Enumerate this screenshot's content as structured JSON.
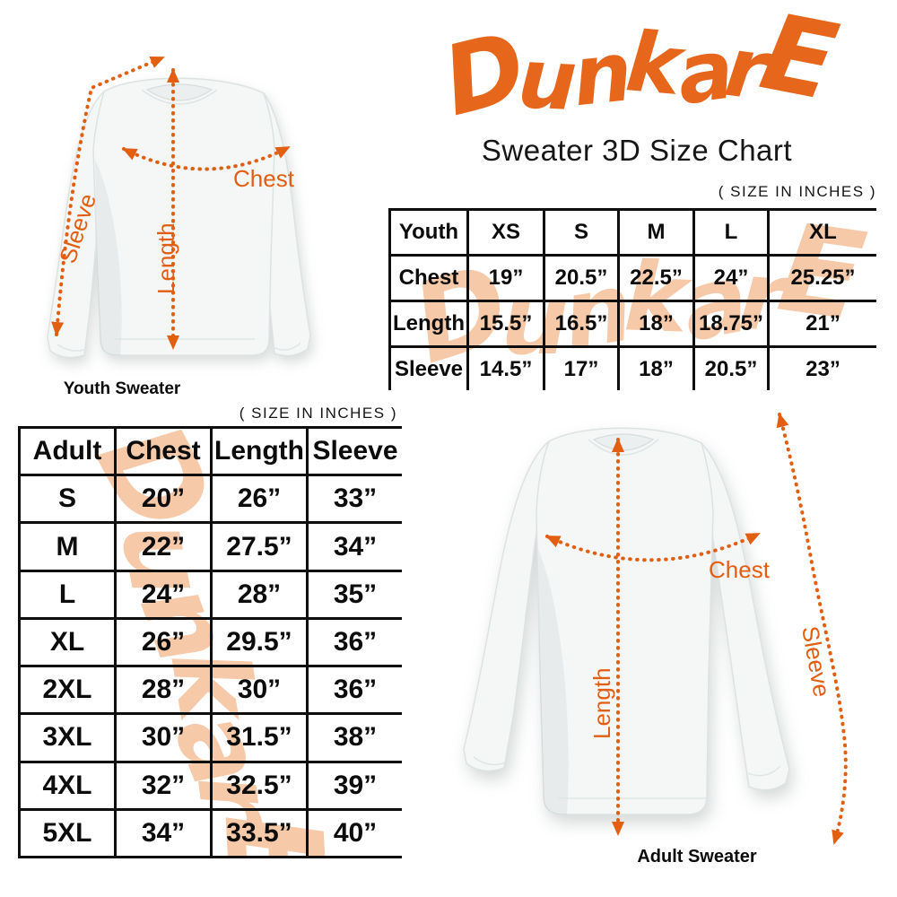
{
  "brand": {
    "logo_text": "DunkarE",
    "title": "Sweater 3D Size Chart",
    "accent_orange": "#E6671C",
    "arrow_orange": "#E25F12",
    "watermark_peach": "#F6C9A9"
  },
  "size_note": "( SIZE IN INCHES )",
  "youth_diagram": {
    "caption": "Youth Sweater",
    "labels": {
      "chest": "Chest",
      "length": "Length",
      "sleeve": "Sleeve"
    }
  },
  "adult_diagram": {
    "caption": "Adult Sweater",
    "labels": {
      "chest": "Chest",
      "length": "Length",
      "sleeve": "Sleeve"
    }
  },
  "youth_table": {
    "header": [
      "Youth",
      "XS",
      "S",
      "M",
      "L",
      "XL"
    ],
    "rows": [
      [
        "Chest",
        "19”",
        "20.5”",
        "22.5”",
        "24”",
        "25.25”"
      ],
      [
        "Length",
        "15.5”",
        "16.5”",
        "18”",
        "18.75”",
        "21”"
      ],
      [
        "Sleeve",
        "14.5”",
        "17”",
        "18”",
        "20.5”",
        "23”"
      ]
    ]
  },
  "adult_table": {
    "header": [
      "Adult",
      "Chest",
      "Length",
      "Sleeve"
    ],
    "rows": [
      [
        "S",
        "20”",
        "26”",
        "33”"
      ],
      [
        "M",
        "22”",
        "27.5”",
        "34”"
      ],
      [
        "L",
        "24”",
        "28”",
        "35”"
      ],
      [
        "XL",
        "26”",
        "29.5”",
        "36”"
      ],
      [
        "2XL",
        "28”",
        "30”",
        "36”"
      ],
      [
        "3XL",
        "30”",
        "31.5”",
        "38”"
      ],
      [
        "4XL",
        "32”",
        "32.5”",
        "39”"
      ],
      [
        "5XL",
        "34”",
        "33.5”",
        "40”"
      ]
    ]
  },
  "chart_data": [
    {
      "type": "table",
      "title": "Youth Sweater sizes (inches)",
      "columns": [
        "Youth",
        "XS",
        "S",
        "M",
        "L",
        "XL"
      ],
      "rows": {
        "Chest": [
          19,
          20.5,
          22.5,
          24,
          25.25
        ],
        "Length": [
          15.5,
          16.5,
          18,
          18.75,
          21
        ],
        "Sleeve": [
          14.5,
          17,
          18,
          20.5,
          23
        ]
      }
    },
    {
      "type": "table",
      "title": "Adult Sweater sizes (inches)",
      "columns": [
        "Adult",
        "Chest",
        "Length",
        "Sleeve"
      ],
      "rows": {
        "S": [
          20,
          26,
          33
        ],
        "M": [
          22,
          27.5,
          34
        ],
        "L": [
          24,
          28,
          35
        ],
        "XL": [
          26,
          29.5,
          36
        ],
        "2XL": [
          28,
          30,
          36
        ],
        "3XL": [
          30,
          31.5,
          38
        ],
        "4XL": [
          32,
          32.5,
          39
        ],
        "5XL": [
          34,
          33.5,
          40
        ]
      }
    }
  ]
}
